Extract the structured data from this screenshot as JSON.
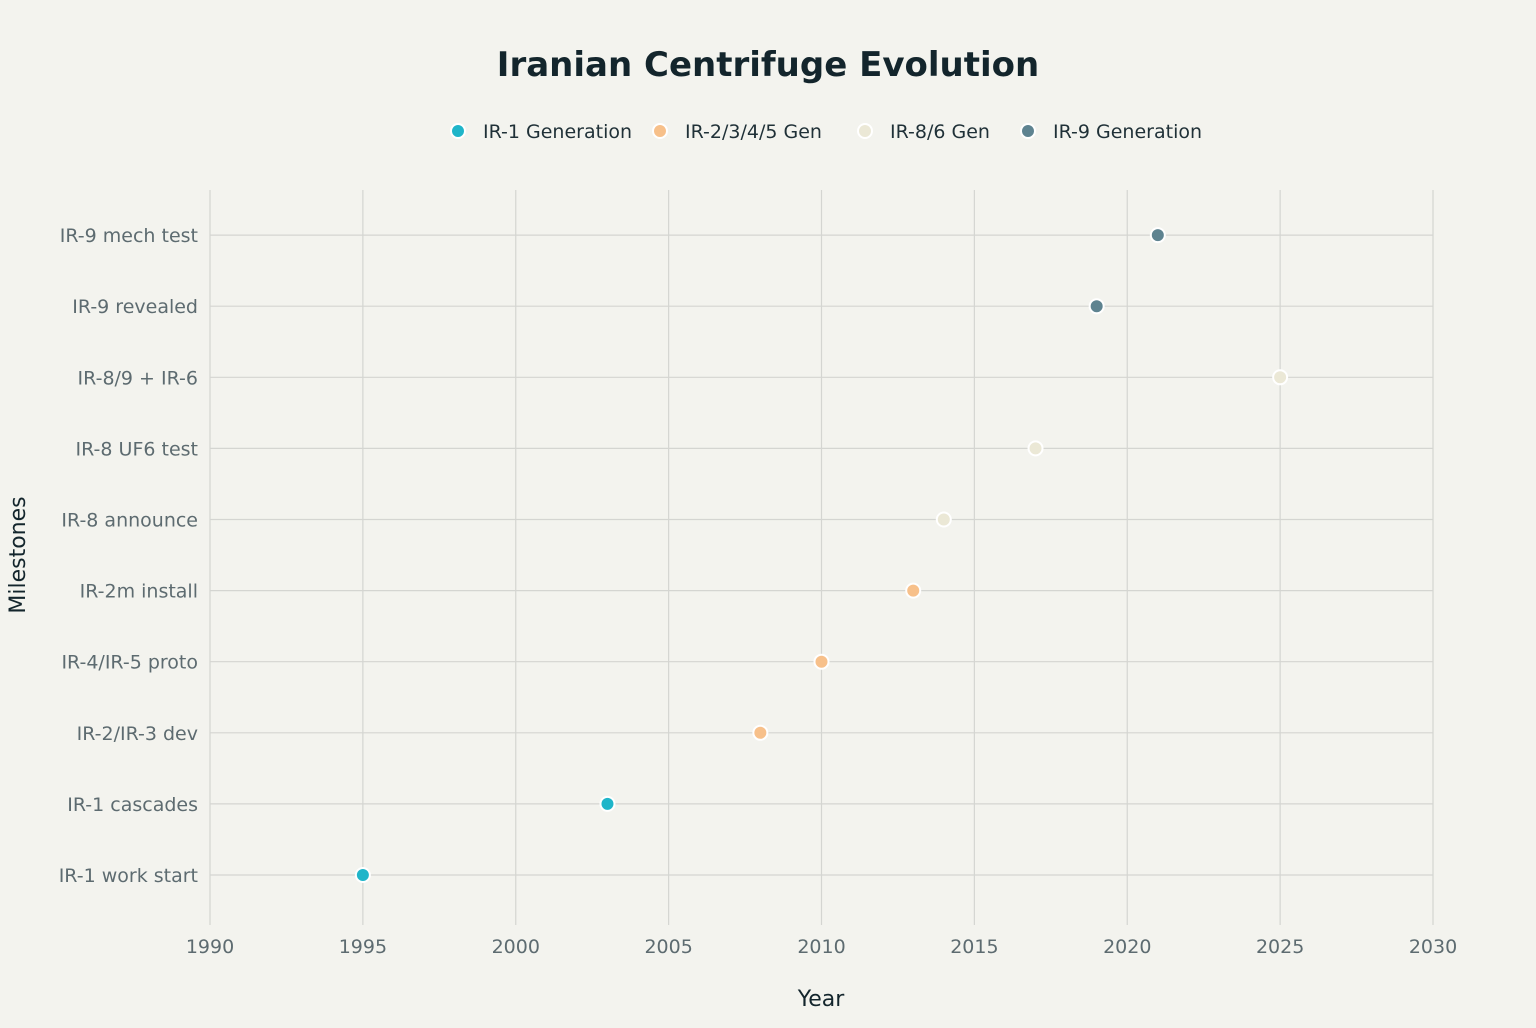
{
  "chart_data": {
    "type": "scatter",
    "title": "Iranian Centrifuge Evolution",
    "xlabel": "Year",
    "ylabel": "Milestones",
    "xlim": [
      1990,
      2030
    ],
    "xticks": [
      1990,
      1995,
      2000,
      2005,
      2010,
      2015,
      2020,
      2025,
      2030
    ],
    "categories": [
      "IR-1 work start",
      "IR-1 cascades",
      "IR-2/IR-3 dev",
      "IR-4/IR-5 proto",
      "IR-2m install",
      "IR-8 announce",
      "IR-8 UF6 test",
      "IR-8/9 + IR-6",
      "IR-9 revealed",
      "IR-9 mech test"
    ],
    "grid": true,
    "legend_position": "top-center",
    "series": [
      {
        "name": "IR-1 Generation",
        "color": "#1fb5c9",
        "points": [
          {
            "x": 1995,
            "y": "IR-1 work start"
          },
          {
            "x": 2003,
            "y": "IR-1 cascades"
          }
        ]
      },
      {
        "name": "IR-2/3/4/5 Gen",
        "color": "#f7c08a",
        "points": [
          {
            "x": 2008,
            "y": "IR-2/IR-3 dev"
          },
          {
            "x": 2010,
            "y": "IR-4/IR-5 proto"
          },
          {
            "x": 2013,
            "y": "IR-2m install"
          }
        ]
      },
      {
        "name": "IR-8/6 Gen",
        "color": "#ebe8d6",
        "points": [
          {
            "x": 2014,
            "y": "IR-8 announce"
          },
          {
            "x": 2017,
            "y": "IR-8 UF6 test"
          },
          {
            "x": 2025,
            "y": "IR-8/9 + IR-6"
          }
        ]
      },
      {
        "name": "IR-9 Generation",
        "color": "#5e8390",
        "points": [
          {
            "x": 2019,
            "y": "IR-9 revealed"
          },
          {
            "x": 2021,
            "y": "IR-9 mech test"
          }
        ]
      }
    ]
  }
}
